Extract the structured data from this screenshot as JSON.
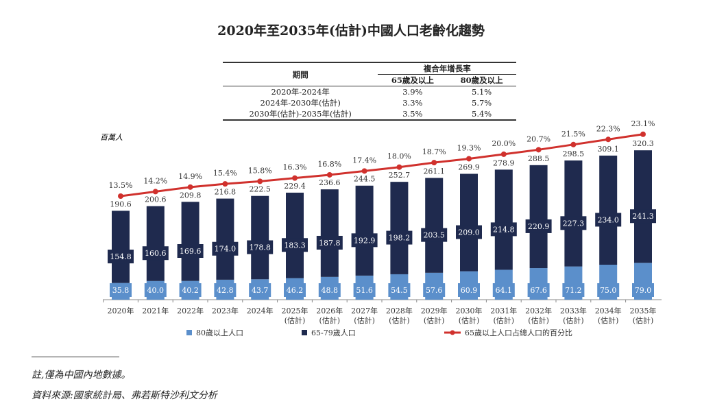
{
  "title": "2020年至2035年(估計)中國人口老齡化趨勢",
  "cagr_table": {
    "header_period": "期間",
    "header_group": "複合年增長率",
    "header_65": "65歲及以上",
    "header_80": "80歲及以上",
    "rows": [
      {
        "period": "2020年-2024年",
        "r65": "3.9%",
        "r80": "5.1%"
      },
      {
        "period": "2024年-2030年(估計)",
        "r65": "3.3%",
        "r80": "5.7%"
      },
      {
        "period": "2030年(估計)-2035年(估計)",
        "r65": "3.5%",
        "r80": "5.4%"
      }
    ]
  },
  "chart_data": {
    "type": "bar",
    "stacked": true,
    "ylabel": "百萬人",
    "categories": [
      "2020年",
      "2021年",
      "2022年",
      "2023年",
      "2024年",
      "2025年",
      "2026年",
      "2027年",
      "2028年",
      "2029年",
      "2030年",
      "2031年",
      "2032年",
      "2033年",
      "2034年",
      "2035年"
    ],
    "estimate_label": "(估計)",
    "estimate_from_index": 5,
    "series": [
      {
        "name": "80歲以上人口",
        "color": "#5b8fcb",
        "values": [
          35.8,
          40.0,
          40.2,
          42.8,
          43.7,
          46.2,
          48.8,
          51.6,
          54.5,
          57.6,
          60.9,
          64.1,
          67.6,
          71.2,
          75.0,
          79.0
        ]
      },
      {
        "name": "65-79歲人口",
        "color": "#1f2a4e",
        "values": [
          154.8,
          160.6,
          169.6,
          174.0,
          178.8,
          183.3,
          187.8,
          192.9,
          198.2,
          203.5,
          209.0,
          214.8,
          220.9,
          227.3,
          234.0,
          241.3
        ]
      }
    ],
    "totals": [
      190.6,
      200.6,
      209.8,
      216.8,
      222.5,
      229.4,
      236.6,
      244.5,
      252.7,
      261.1,
      269.9,
      278.9,
      288.5,
      298.5,
      309.1,
      320.3
    ],
    "line_series": {
      "name": "65歲以上人口占總人口的百分比",
      "color": "#d0312d",
      "values": [
        13.5,
        14.2,
        14.9,
        15.4,
        15.8,
        16.3,
        16.8,
        17.4,
        18.0,
        18.7,
        19.3,
        20.0,
        20.7,
        21.5,
        22.3,
        23.1
      ],
      "unit": "%"
    },
    "legend_position": "bottom",
    "grid": false
  },
  "notes": {
    "note": "註,僅為中國內地數據。",
    "source": "資料來源:國家統計局、弗若斯特沙利文分析"
  }
}
